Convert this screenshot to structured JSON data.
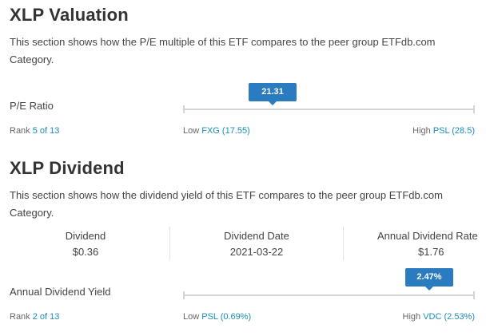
{
  "valuation": {
    "title": "XLP Valuation",
    "description": "This section shows how the P/E multiple of this ETF compares to the peer group ETFdb.com Category.",
    "metric_label": "P/E Ratio",
    "value": "21.31",
    "rank_label": "Rank",
    "rank": "5 of 13",
    "low_label": "Low",
    "low": "FXG (17.55)",
    "high_label": "High",
    "high": "PSL (28.5)"
  },
  "dividend": {
    "title": "XLP Dividend",
    "description": "This section shows how the dividend yield of this ETF compares to the peer group ETFdb.com Category.",
    "stats": [
      {
        "label": "Dividend",
        "value": "$0.36"
      },
      {
        "label": "Dividend Date",
        "value": "2021-03-22"
      },
      {
        "label": "Annual Dividend Rate",
        "value": "$1.76"
      }
    ],
    "metric_label": "Annual Dividend Yield",
    "value": "2.47%",
    "rank_label": "Rank",
    "rank": "2 of 13",
    "low_label": "Low",
    "low": "PSL (0.69%)",
    "high_label": "High",
    "high": "VDC (2.53%)"
  },
  "colors": {
    "accent": "#2a7bbf",
    "link": "#1b8db5"
  }
}
